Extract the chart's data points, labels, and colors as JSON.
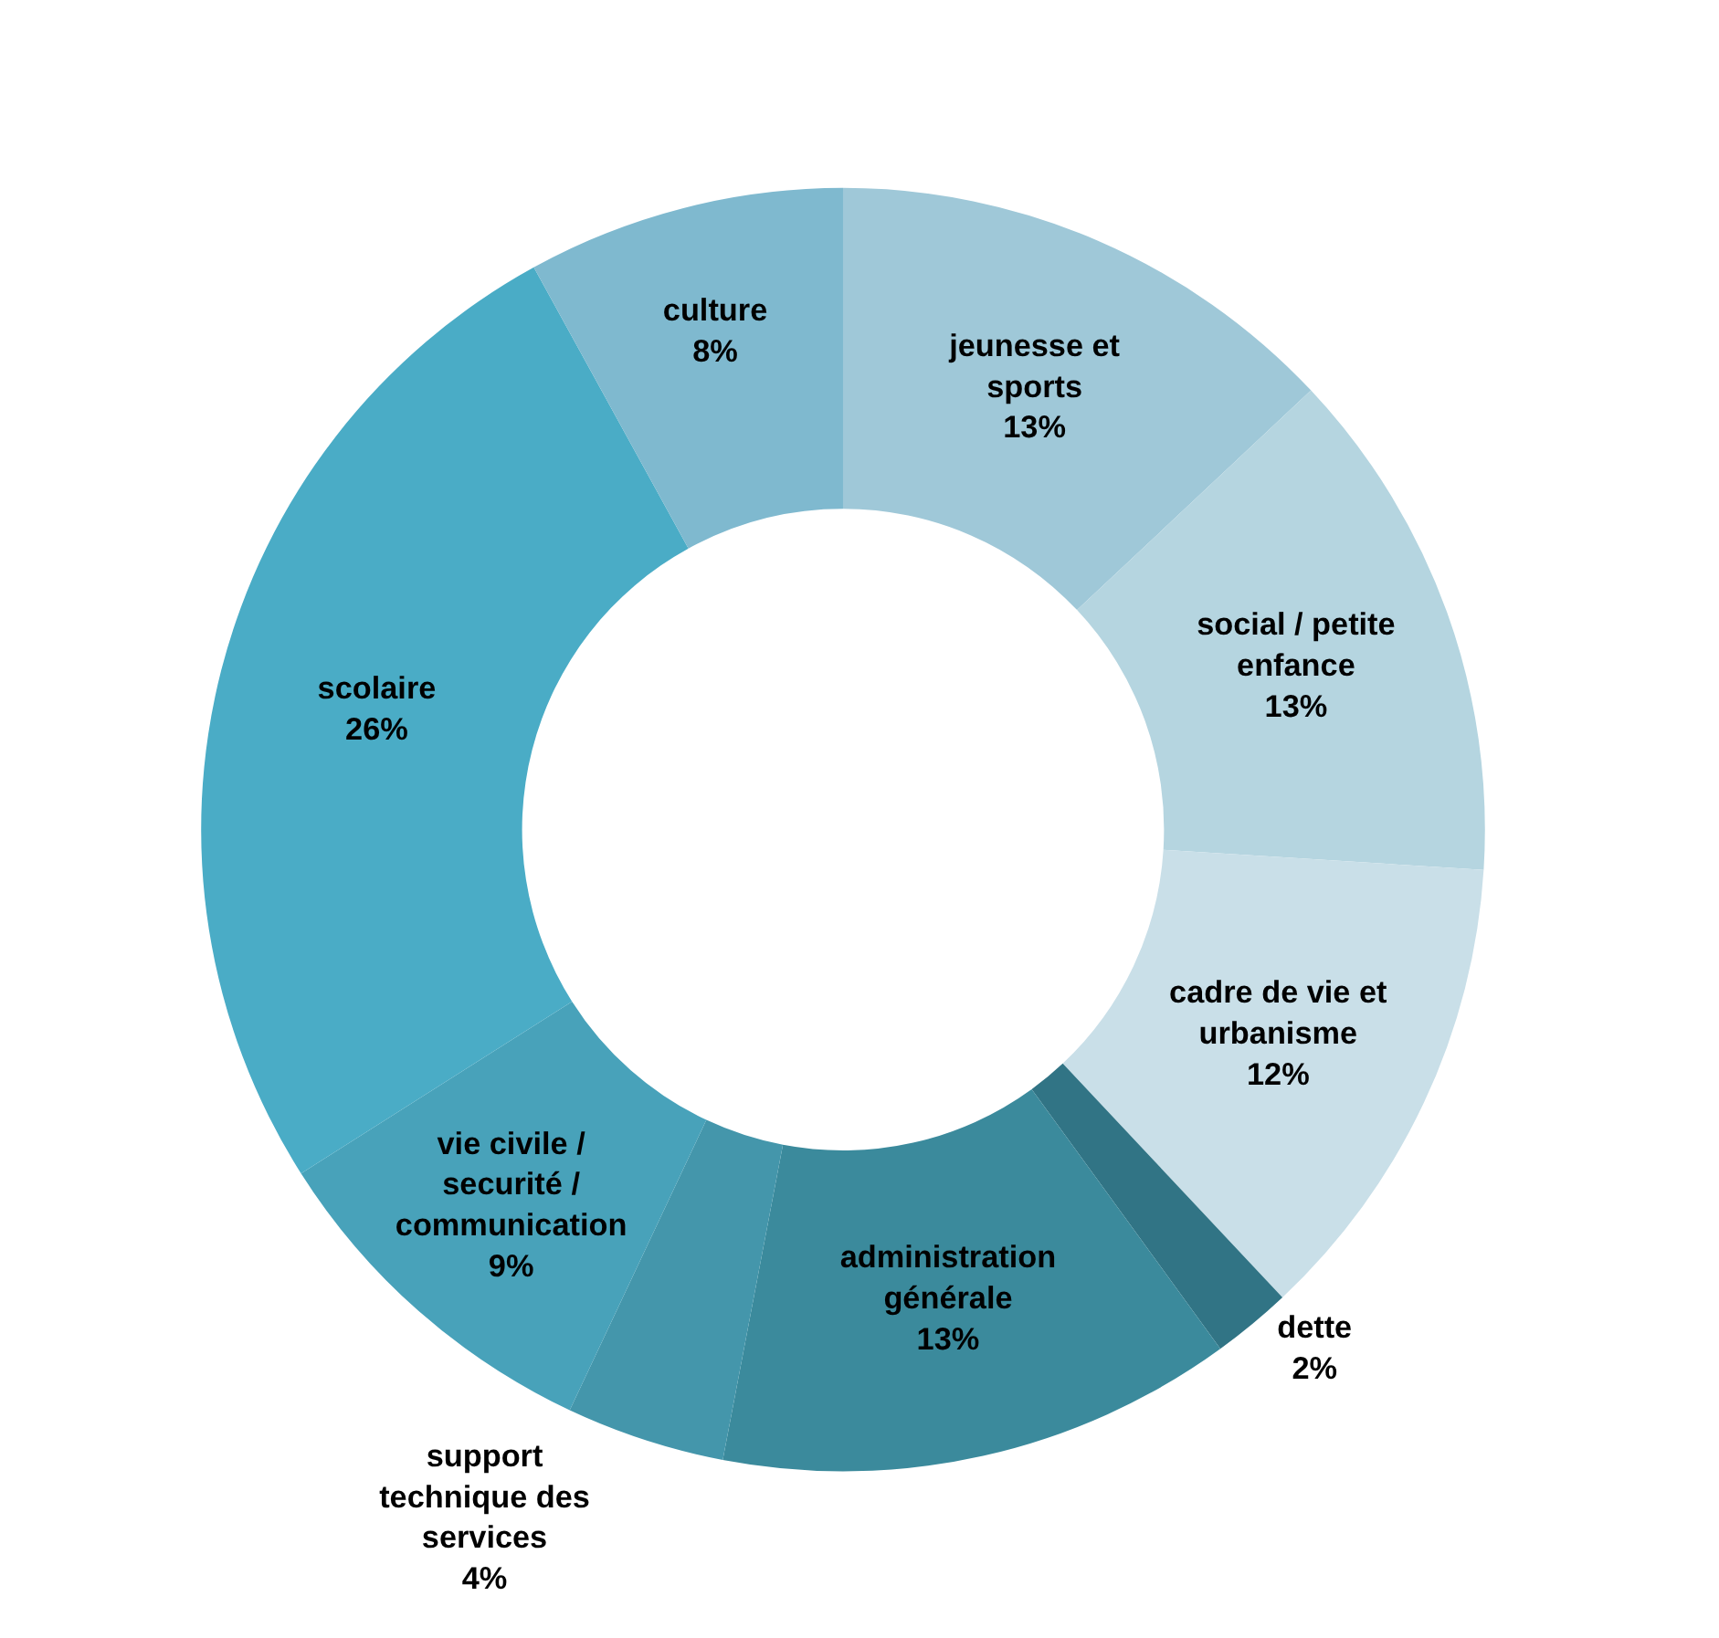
{
  "chart_data": {
    "type": "donut",
    "categories": [
      "jeunesse et sports",
      "social / petite enfance",
      "cadre de vie et urbanisme",
      "dette",
      "administration générale",
      "support technique des services",
      "vie civile / securité / communication",
      "scolaire",
      "culture"
    ],
    "values": [
      13,
      13,
      12,
      2,
      13,
      4,
      9,
      26,
      8
    ],
    "colors": [
      "#9fc8d8",
      "#b5d5e0",
      "#c9dfe8",
      "#317485",
      "#3b8a9c",
      "#4496ab",
      "#48a2ba",
      "#4aacc6",
      "#7fb9cf"
    ],
    "value_labels": [
      "13%",
      "13%",
      "12%",
      "2%",
      "13%",
      "4%",
      "9%",
      "26%",
      "8%"
    ],
    "legend": false
  }
}
